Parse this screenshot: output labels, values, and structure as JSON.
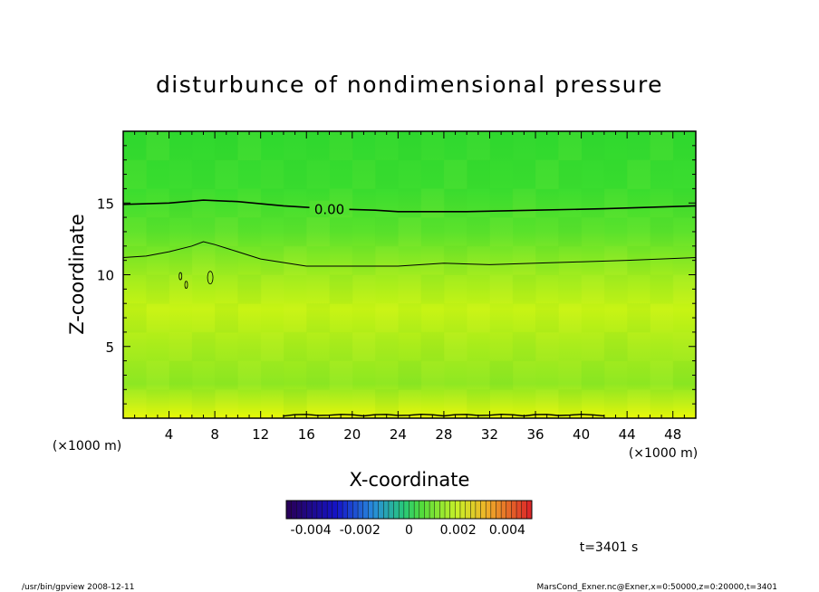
{
  "chart_data": {
    "type": "heatmap",
    "title": "disturbunce of nondimensional pressure",
    "xlabel": "X-coordinate",
    "ylabel": "Z-coordinate",
    "x_unit": "(×1000 m)",
    "y_unit": "(×1000 m)",
    "xlim": [
      0,
      50
    ],
    "ylim": [
      0,
      20
    ],
    "x_ticks": [
      4,
      8,
      12,
      16,
      20,
      24,
      28,
      32,
      36,
      40,
      44,
      48
    ],
    "y_ticks": [
      5,
      10,
      15
    ],
    "contours": [
      {
        "level": "0.00",
        "labeled": true,
        "x": [
          0,
          4,
          7,
          10,
          14,
          18,
          22,
          24,
          30,
          36,
          42,
          50
        ],
        "z": [
          14.9,
          15.0,
          15.2,
          15.1,
          14.8,
          14.6,
          14.5,
          14.4,
          14.4,
          14.5,
          14.6,
          14.8
        ]
      },
      {
        "level": "",
        "labeled": false,
        "x": [
          0,
          2,
          4,
          6,
          7,
          8,
          10,
          12,
          16,
          20,
          24,
          28,
          32,
          36,
          40,
          44,
          50
        ],
        "z": [
          11.2,
          11.3,
          11.6,
          12.0,
          12.3,
          12.1,
          11.6,
          11.1,
          10.6,
          10.6,
          10.6,
          10.8,
          10.7,
          10.8,
          10.9,
          11.0,
          11.2
        ]
      }
    ],
    "colorbar": {
      "min": -0.005,
      "max": 0.005,
      "tick_labels": [
        "-0.004",
        "-0.002",
        "0",
        "0.002",
        "0.004"
      ],
      "tick_values": [
        -0.004,
        -0.002,
        0,
        0.002,
        0.004
      ]
    },
    "time_label": "t=3401 s"
  },
  "footer": {
    "left": "/usr/bin/gpview   2008-12-11",
    "right": "MarsCond_Exner.nc@Exner,x=0:50000,z=0:20000,t=3401"
  }
}
